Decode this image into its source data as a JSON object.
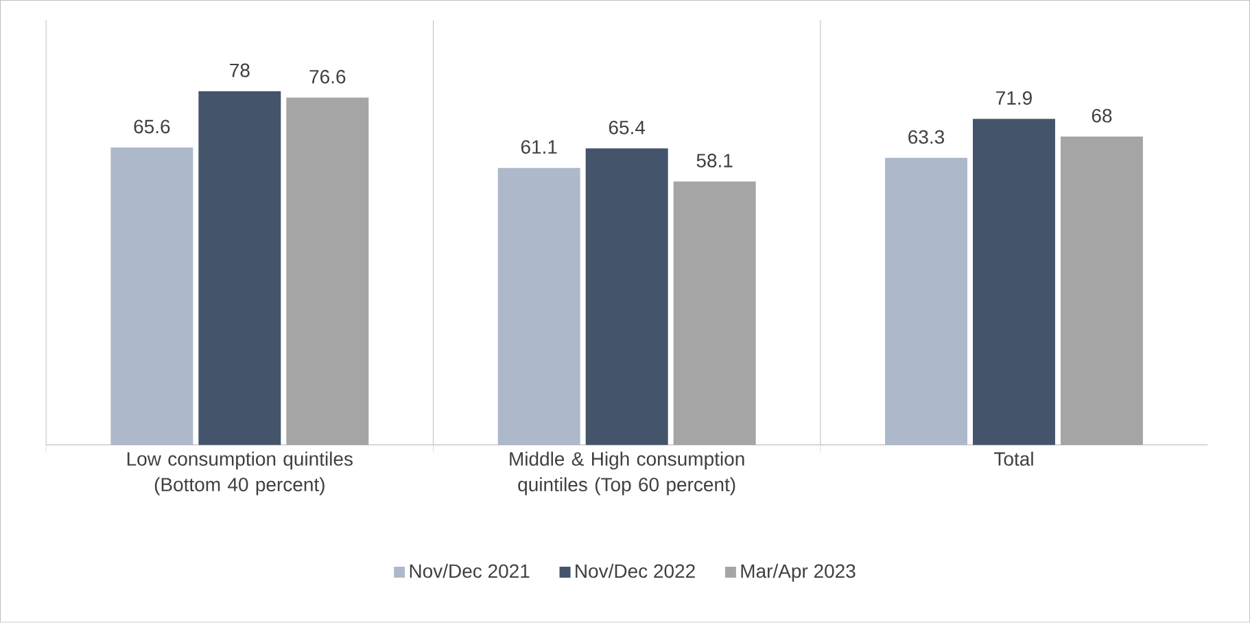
{
  "chart_data": {
    "type": "bar",
    "categories": [
      "Low consumption quintiles (Bottom 40 percent)",
      "Middle & High consumption quintiles (Top 60 percent)",
      "Total"
    ],
    "series": [
      {
        "name": "Nov/Dec 2021",
        "color": "#adb9ca",
        "values": [
          65.6,
          61.1,
          63.3
        ]
      },
      {
        "name": "Nov/Dec 2022",
        "color": "#44546a",
        "values": [
          78,
          65.4,
          71.9
        ]
      },
      {
        "name": "Mar/Apr 2023",
        "color": "#a5a5a5",
        "values": [
          76.6,
          58.1,
          68
        ]
      }
    ],
    "data_labels": true,
    "legend": "bottom"
  }
}
